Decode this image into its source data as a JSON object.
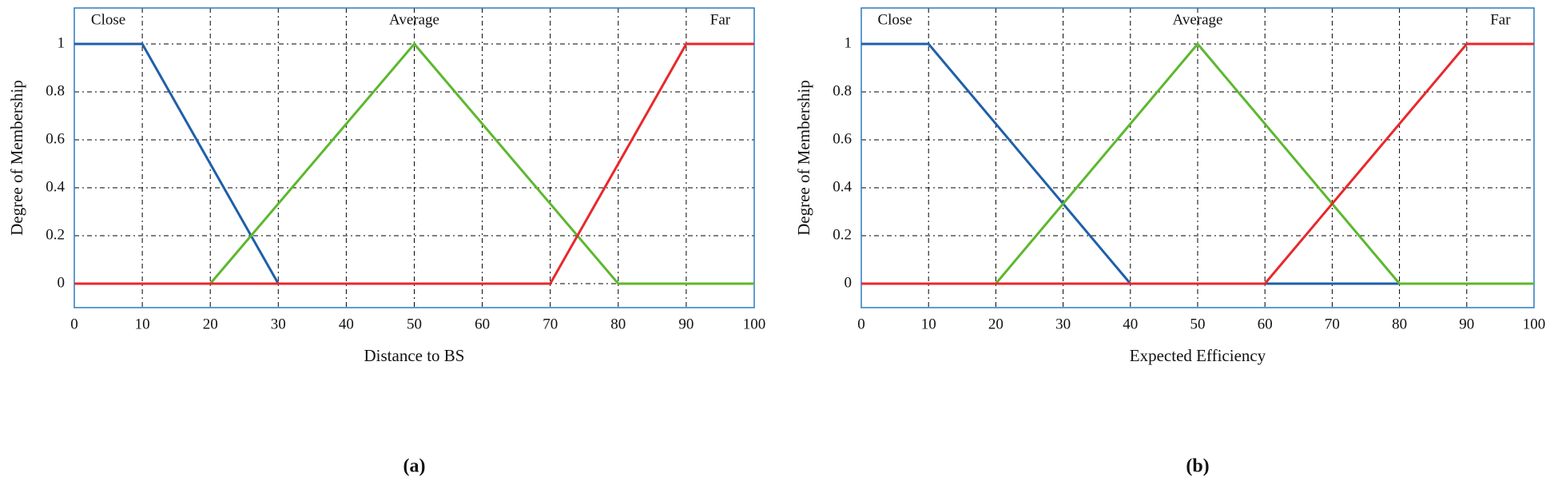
{
  "charts": [
    {
      "type": "line",
      "x_label": "Distance to BS",
      "y_label": "Degree of Membership",
      "caption": "(a)",
      "xlim": [
        0,
        100
      ],
      "ylim": [
        -0.1,
        1.15
      ],
      "xticks": [
        0,
        10,
        20,
        30,
        40,
        50,
        60,
        70,
        80,
        90,
        100
      ],
      "yticks": [
        0,
        0.2,
        0.4,
        0.6,
        0.8,
        1
      ],
      "grid": true,
      "series": [
        {
          "name": "Close",
          "color": "#1f5fa8",
          "x": [
            0,
            10,
            30
          ],
          "values": [
            1,
            1,
            0
          ]
        },
        {
          "name": "Average",
          "color": "#5cb82e",
          "x": [
            20,
            50,
            80,
            100
          ],
          "values": [
            0,
            1,
            0,
            0
          ]
        },
        {
          "name": "Far",
          "color": "#e8282b",
          "x": [
            0,
            70,
            90,
            100
          ],
          "values": [
            0,
            0,
            1,
            1
          ]
        }
      ]
    },
    {
      "type": "line",
      "x_label": "Expected Efficiency",
      "y_label": "Degree of Membership",
      "caption": "(b)",
      "xlim": [
        0,
        100
      ],
      "ylim": [
        -0.1,
        1.15
      ],
      "xticks": [
        0,
        10,
        20,
        30,
        40,
        50,
        60,
        70,
        80,
        90,
        100
      ],
      "yticks": [
        0,
        0.2,
        0.4,
        0.6,
        0.8,
        1
      ],
      "grid": true,
      "series": [
        {
          "name": "Close",
          "color": "#1f5fa8",
          "x": [
            0,
            10,
            40,
            80
          ],
          "values": [
            1,
            1,
            0,
            0
          ]
        },
        {
          "name": "Average",
          "color": "#5cb82e",
          "x": [
            20,
            50,
            80,
            100
          ],
          "values": [
            0,
            1,
            0,
            0
          ]
        },
        {
          "name": "Far",
          "color": "#e8282b",
          "x": [
            0,
            60,
            90,
            100
          ],
          "values": [
            0,
            0,
            1,
            1
          ]
        }
      ]
    }
  ]
}
